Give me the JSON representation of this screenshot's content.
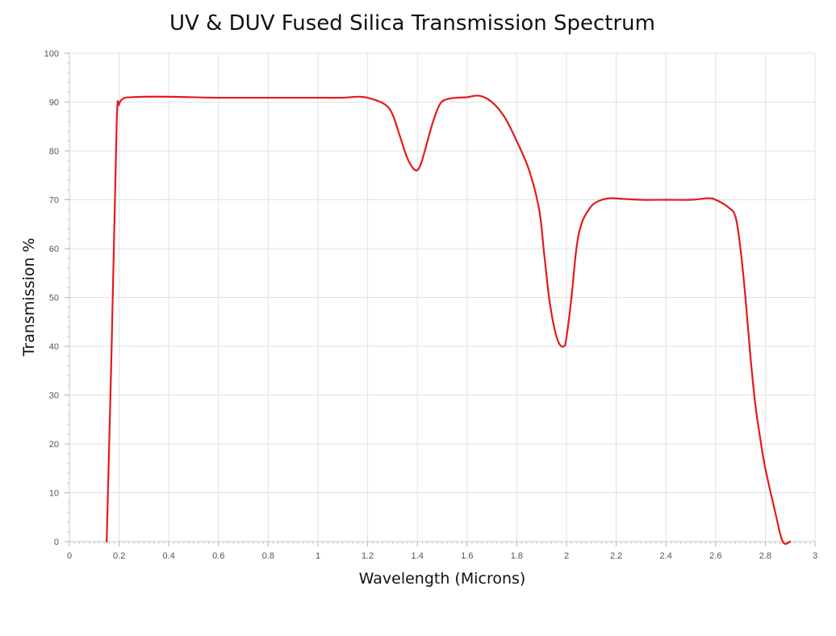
{
  "chart_data": {
    "type": "line",
    "title": "UV & DUV Fused Silica Transmission Spectrum",
    "xlabel": "Wavelength (Microns)",
    "ylabel": "Transmission %",
    "xlim": [
      0,
      3
    ],
    "ylim": [
      0,
      100
    ],
    "x_ticks": [
      0,
      0.2,
      0.4,
      0.6,
      0.8,
      1,
      1.2,
      1.4,
      1.6,
      1.8,
      2,
      2.2,
      2.4,
      2.6,
      2.8,
      3
    ],
    "y_ticks": [
      0,
      10,
      20,
      30,
      40,
      50,
      60,
      70,
      80,
      90,
      100
    ],
    "grid": true,
    "legend": "none",
    "series": [
      {
        "color": "#e31a1c",
        "x": [
          0.15,
          0.17,
          0.19,
          0.2,
          0.22,
          0.25,
          0.3,
          0.4,
          0.5,
          0.6,
          0.8,
          1.0,
          1.1,
          1.17,
          1.22,
          1.27,
          1.3,
          1.33,
          1.36,
          1.39,
          1.41,
          1.43,
          1.46,
          1.49,
          1.52,
          1.56,
          1.6,
          1.65,
          1.7,
          1.75,
          1.8,
          1.85,
          1.89,
          1.91,
          1.93,
          1.95,
          1.97,
          1.99,
          2.0,
          2.02,
          2.04,
          2.06,
          2.09,
          2.12,
          2.17,
          2.22,
          2.3,
          2.4,
          2.5,
          2.57,
          2.6,
          2.65,
          2.68,
          2.7,
          2.72,
          2.74,
          2.76,
          2.78,
          2.8,
          2.84,
          2.87,
          2.9
        ],
        "y": [
          0,
          40,
          85,
          89.5,
          90.8,
          91,
          91.1,
          91.1,
          91,
          90.9,
          90.9,
          90.9,
          90.9,
          91.1,
          90.6,
          89.5,
          87.5,
          83,
          78.5,
          76.1,
          76.8,
          80,
          85.5,
          89.5,
          90.6,
          90.9,
          91,
          91.3,
          90,
          87,
          82,
          76,
          68,
          59,
          50,
          44,
          40.6,
          40,
          41.8,
          50,
          60,
          65,
          68,
          69.5,
          70.3,
          70.2,
          70,
          70,
          70,
          70.3,
          70,
          68.5,
          66.5,
          60,
          50,
          38,
          28,
          21,
          15,
          6,
          0,
          0
        ]
      }
    ]
  }
}
